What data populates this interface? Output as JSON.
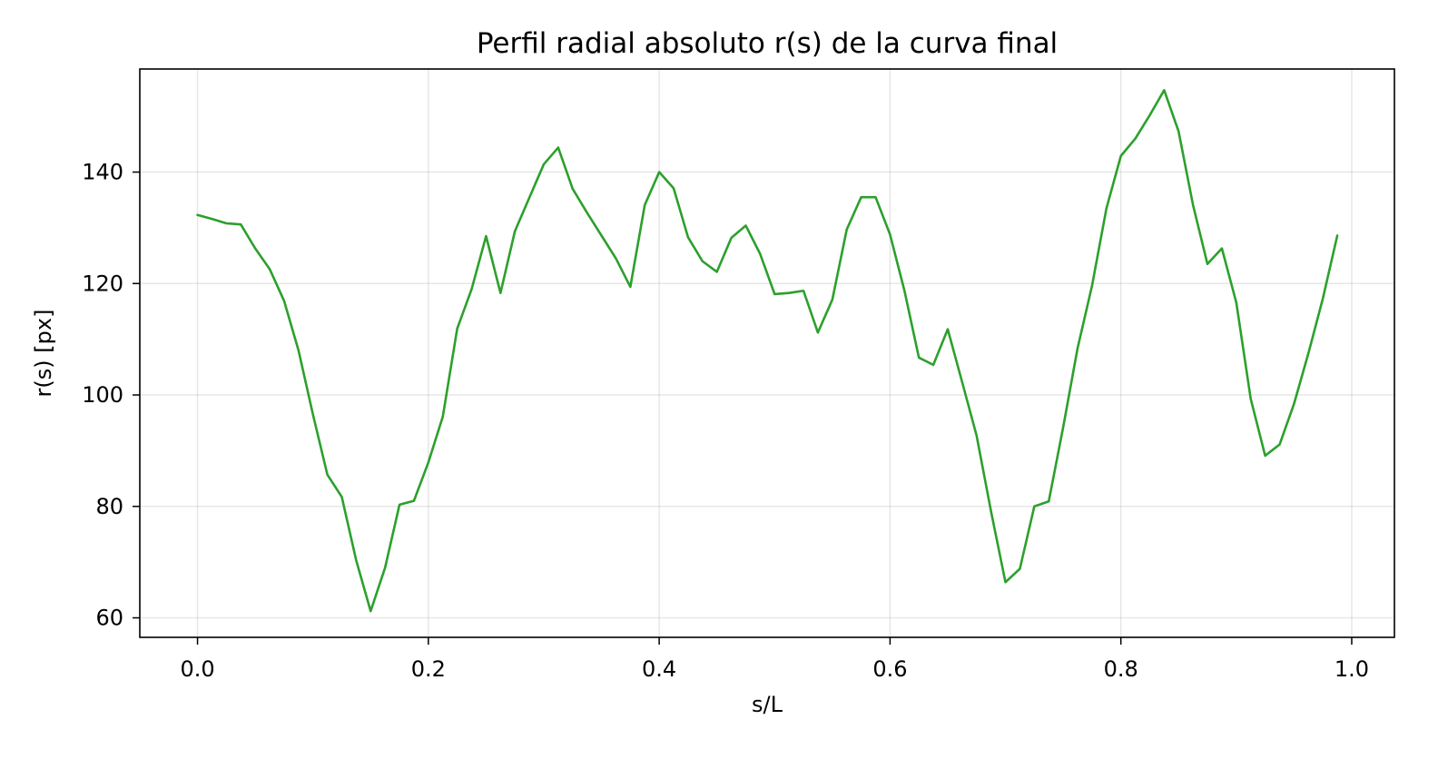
{
  "chart_data": {
    "type": "line",
    "title": "Perfil radial absoluto r(s) de la curva final",
    "xlabel": "s/L",
    "ylabel": "r(s) [px]",
    "xlim": [
      -0.05,
      1.037
    ],
    "ylim": [
      56.5,
      158.5
    ],
    "xticks": [
      0.0,
      0.2,
      0.4,
      0.6,
      0.8,
      1.0
    ],
    "xtick_labels": [
      "0.0",
      "0.2",
      "0.4",
      "0.6",
      "0.8",
      "1.0"
    ],
    "yticks": [
      60,
      80,
      100,
      120,
      140
    ],
    "ytick_labels": [
      "60",
      "80",
      "100",
      "120",
      "140"
    ],
    "grid": true,
    "colors": {
      "series": "#2ca02c"
    },
    "series": [
      {
        "x": [
          0.0,
          0.0125,
          0.025,
          0.0375,
          0.05,
          0.0625,
          0.075,
          0.0875,
          0.1,
          0.1125,
          0.125,
          0.1375,
          0.15,
          0.1625,
          0.175,
          0.1875,
          0.2,
          0.2125,
          0.225,
          0.2375,
          0.25,
          0.2625,
          0.275,
          0.2875,
          0.3,
          0.3125,
          0.325,
          0.3375,
          0.35,
          0.3625,
          0.375,
          0.3875,
          0.4,
          0.4125,
          0.425,
          0.4375,
          0.45,
          0.4625,
          0.475,
          0.4875,
          0.5,
          0.5125,
          0.525,
          0.5375,
          0.55,
          0.5625,
          0.575,
          0.5875,
          0.6,
          0.6125,
          0.625,
          0.6375,
          0.65,
          0.6625,
          0.675,
          0.6875,
          0.7,
          0.7125,
          0.725,
          0.7375,
          0.75,
          0.7625,
          0.775,
          0.7875,
          0.8,
          0.8125,
          0.825,
          0.8375,
          0.85,
          0.8625,
          0.875,
          0.8875,
          0.9,
          0.9125,
          0.925,
          0.9375,
          0.95,
          0.9625,
          0.975,
          0.9875
        ],
        "values": [
          132.3,
          131.6,
          130.8,
          130.6,
          126.3,
          122.6,
          116.9,
          108.0,
          96.5,
          85.7,
          81.7,
          70.3,
          61.2,
          69.0,
          80.3,
          81.0,
          87.9,
          96.1,
          111.9,
          119.0,
          128.5,
          118.3,
          129.4,
          135.4,
          141.4,
          144.4,
          137.0,
          132.7,
          128.6,
          124.5,
          119.4,
          134.1,
          140.0,
          137.1,
          128.3,
          124.0,
          122.1,
          128.2,
          130.4,
          125.3,
          118.1,
          118.3,
          118.7,
          111.2,
          117.1,
          129.7,
          135.5,
          135.5,
          128.8,
          118.7,
          106.7,
          105.4,
          111.8,
          102.3,
          92.7,
          79.1,
          66.4,
          68.8,
          80.0,
          80.9,
          94.2,
          108.4,
          119.6,
          133.5,
          142.9,
          146.0,
          150.2,
          154.7,
          147.3,
          134.1,
          123.5,
          126.3,
          116.6,
          99.3,
          89.1,
          91.1,
          98.4,
          107.5,
          117.3,
          128.6
        ]
      }
    ]
  }
}
